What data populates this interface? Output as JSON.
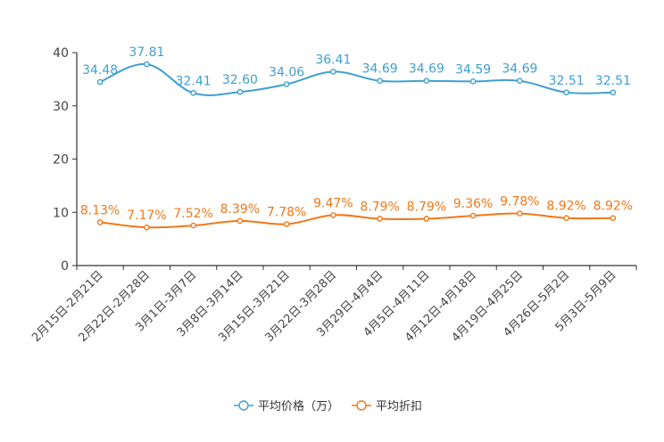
{
  "chart_data": {
    "type": "line",
    "title": "",
    "xlabel": "",
    "ylabel": "",
    "ylim": [
      0,
      40
    ],
    "y_ticks": [
      "0",
      "10",
      "20",
      "30",
      "40"
    ],
    "grid": false,
    "legend_position": "bottom-center",
    "categories": [
      "2月15日-2月21日",
      "2月22日-2月28日",
      "3月1日-3月7日",
      "3月8日-3月14日",
      "3月15日-3月21日",
      "3月22日-3月28日",
      "3月29日-4月4日",
      "4月5日-4月11日",
      "4月12日-4月18日",
      "4月19日-4月25日",
      "4月26日-5月2日",
      "5月3日-5月9日"
    ],
    "series": [
      {
        "name": "平均价格（万）",
        "color": "#3fa0cf",
        "values": [
          34.48,
          37.81,
          32.41,
          32.6,
          34.06,
          36.41,
          34.69,
          34.69,
          34.59,
          34.69,
          32.51,
          32.51
        ],
        "labels": [
          "34.48",
          "37.81",
          "32.41",
          "32.60",
          "34.06",
          "36.41",
          "34.69",
          "34.69",
          "34.59",
          "34.69",
          "32.51",
          "32.51"
        ]
      },
      {
        "name": "平均折扣",
        "color": "#f07819",
        "values": [
          8.13,
          7.17,
          7.52,
          8.39,
          7.78,
          9.47,
          8.79,
          8.79,
          9.36,
          9.78,
          8.92,
          8.92
        ],
        "labels": [
          "8.13%",
          "7.17%",
          "7.52%",
          "8.39%",
          "7.78%",
          "9.47%",
          "8.79%",
          "8.79%",
          "9.36%",
          "9.78%",
          "8.92%",
          "8.92%"
        ]
      }
    ]
  }
}
